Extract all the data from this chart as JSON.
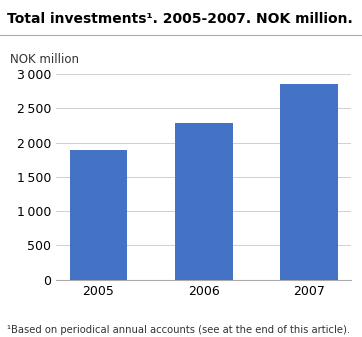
{
  "title": "Total investments¹. 2005-2007. NOK million.",
  "ylabel": "NOK million",
  "categories": [
    "2005",
    "2006",
    "2007"
  ],
  "values": [
    1900,
    2290,
    2860
  ],
  "bar_color": "#4472C4",
  "ylim": [
    0,
    3000
  ],
  "yticks": [
    0,
    500,
    1000,
    1500,
    2000,
    2500,
    3000
  ],
  "footnote": "¹Based on periodical annual accounts (see at the end of this article).",
  "background_color": "#ffffff",
  "grid_color": "#d0d0d0"
}
